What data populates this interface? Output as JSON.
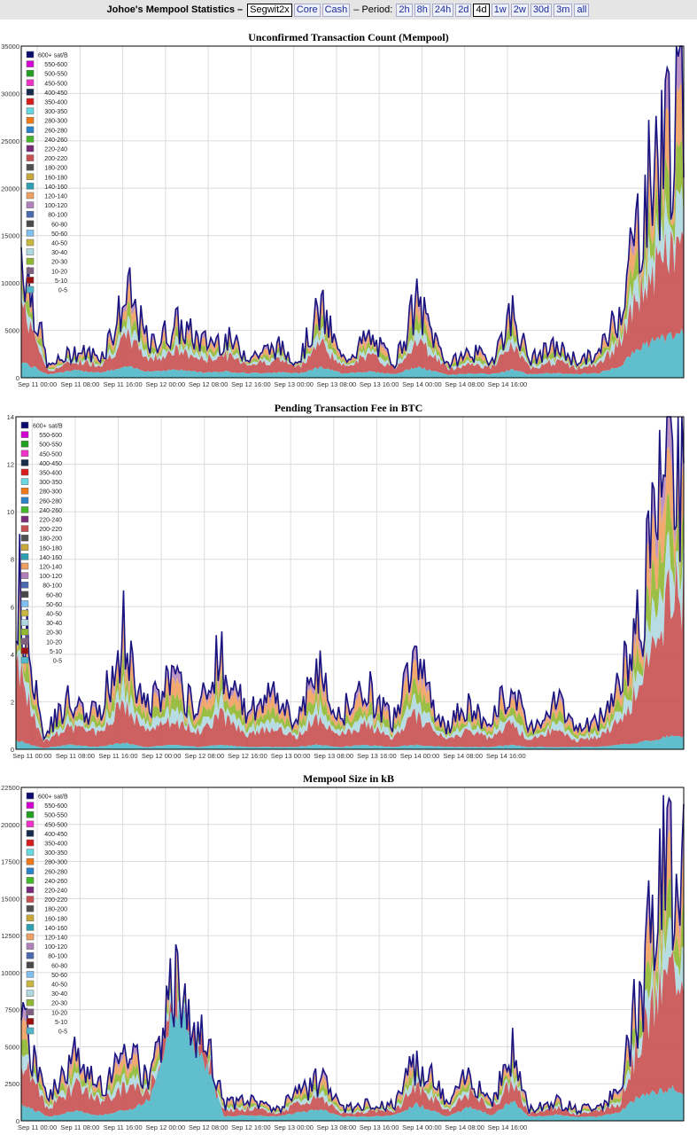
{
  "topbar": {
    "title": "Johoe's Mempool Statistics –",
    "coins": [
      "Segwit2x",
      "Core",
      "Cash"
    ],
    "active_coin": "Segwit2x",
    "period_label": "– Period:",
    "periods": [
      "2h",
      "8h",
      "24h",
      "2d",
      "4d",
      "1w",
      "2w",
      "30d",
      "3m",
      "all"
    ],
    "active_period": "4d"
  },
  "colors": {
    "legend": [
      "#0c0c6e",
      "#d400d4",
      "#22a022",
      "#f030c8",
      "#162c4c",
      "#d81c1c",
      "#66d8e0",
      "#f07818",
      "#2a82c8",
      "#44b828",
      "#7a2a7a",
      "#c85050",
      "#505050",
      "#c8a838",
      "#2aa0b0",
      "#f0a060",
      "#b080b8",
      "#4a6ab0",
      "#4a4a4a",
      "#80c0f0",
      "#c8b840",
      "#b0d8e0",
      "#90b830",
      "#806080",
      "#9a1010",
      "#50b8c8"
    ],
    "line": "#1a1480",
    "grid": "#dcdcdc"
  },
  "legend_labels": [
    "600+ sat/B",
    "550-600",
    "500-550",
    "450-500",
    "400-450",
    "350-400",
    "300-350",
    "280-300",
    "260-280",
    "240-260",
    "220-240",
    "200-220",
    "180-200",
    "160-180",
    "140-160",
    "120-140",
    "100-120",
    "80-100",
    "60-80",
    "50-60",
    "40-50",
    "30-40",
    "20-30",
    "10-20",
    "5-10",
    "0-5"
  ],
  "x_ticks": [
    "Sep 11 00:00",
    "Sep 11 08:00",
    "Sep 11 16:00",
    "Sep 12 00:00",
    "Sep 12 08:00",
    "Sep 12 16:00",
    "Sep 13 00:00",
    "Sep 13 08:00",
    "Sep 13 16:00",
    "Sep 14 00:00",
    "Sep 14 08:00",
    "Sep 14 16:00"
  ],
  "chart_data": [
    {
      "type": "area",
      "title": "Unconfirmed Transaction Count (Mempool)",
      "ylim": [
        0,
        35000
      ],
      "yticks": [
        "0",
        "5000",
        "10000",
        "15000",
        "20000",
        "25000",
        "30000",
        "35000"
      ],
      "x_hours": [
        0,
        5,
        10,
        15,
        20,
        24,
        29,
        34,
        38,
        43,
        48,
        52,
        56,
        60,
        65,
        70,
        74,
        80,
        84,
        88,
        92,
        95,
        100,
        104,
        108,
        112,
        116,
        122
      ],
      "total": [
        15000,
        1200,
        3000,
        2500,
        9500,
        3500,
        6000,
        4000,
        4500,
        2500,
        3500,
        2000,
        8000,
        2000,
        4500,
        1800,
        8500,
        1500,
        3000,
        2000,
        7500,
        2000,
        3500,
        2000,
        2500,
        8000,
        19000,
        30500
      ],
      "lower": [
        8500,
        700,
        1800,
        1500,
        4500,
        2000,
        3000,
        2000,
        2500,
        1500,
        2000,
        1200,
        4000,
        1200,
        2500,
        1000,
        4200,
        900,
        1600,
        1100,
        3500,
        1100,
        1800,
        1100,
        1400,
        3800,
        9500,
        14500
      ],
      "base": [
        1800,
        400,
        800,
        600,
        1200,
        700,
        900,
        600,
        700,
        500,
        600,
        500,
        1200,
        500,
        700,
        400,
        1200,
        300,
        500,
        400,
        900,
        400,
        500,
        400,
        500,
        1300,
        3500,
        4800
      ]
    },
    {
      "type": "area",
      "title": "Pending Transaction Fee in BTC",
      "ylim": [
        0,
        14
      ],
      "yticks": [
        "0",
        "2",
        "4",
        "6",
        "8",
        "10",
        "12",
        "14"
      ],
      "x_hours": [
        0,
        5,
        10,
        15,
        20,
        24,
        29,
        34,
        38,
        43,
        48,
        52,
        56,
        60,
        65,
        70,
        74,
        80,
        84,
        88,
        92,
        95,
        100,
        104,
        108,
        112,
        116,
        122
      ],
      "total": [
        8.2,
        0.6,
        2.2,
        1.5,
        5.3,
        1.8,
        3.0,
        2.0,
        4.3,
        1.5,
        2.5,
        1.2,
        3.5,
        1.5,
        2.8,
        1.2,
        3.8,
        1.0,
        2.0,
        1.2,
        3.0,
        1.0,
        2.2,
        1.0,
        1.2,
        3.0,
        6.0,
        13.8
      ],
      "lower": [
        4.0,
        0.3,
        1.0,
        0.7,
        2.0,
        0.8,
        1.2,
        0.8,
        1.5,
        0.6,
        1.0,
        0.5,
        1.4,
        0.6,
        1.1,
        0.5,
        1.5,
        0.4,
        0.8,
        0.5,
        1.2,
        0.4,
        0.9,
        0.4,
        0.5,
        1.2,
        2.8,
        7.0
      ],
      "base": [
        0.4,
        0.05,
        0.2,
        0.1,
        0.3,
        0.1,
        0.2,
        0.1,
        0.2,
        0.1,
        0.1,
        0.1,
        0.2,
        0.1,
        0.2,
        0.1,
        0.2,
        0.1,
        0.1,
        0.1,
        0.2,
        0.1,
        0.1,
        0.1,
        0.1,
        0.2,
        0.3,
        0.6
      ]
    },
    {
      "type": "area",
      "title": "Mempool Size in kB",
      "ylim": [
        0,
        22500
      ],
      "yticks": [
        "0",
        "2500",
        "5000",
        "7500",
        "10000",
        "12500",
        "15000",
        "17500",
        "20000",
        "22500"
      ],
      "x_hours": [
        0,
        5,
        10,
        15,
        20,
        24,
        29,
        34,
        38,
        43,
        48,
        52,
        56,
        60,
        65,
        70,
        74,
        80,
        84,
        88,
        92,
        95,
        100,
        104,
        108,
        112,
        116,
        122
      ],
      "total": [
        7200,
        1500,
        4500,
        2500,
        5500,
        2500,
        10500,
        6500,
        1200,
        1500,
        800,
        2000,
        3000,
        800,
        1200,
        1200,
        4500,
        1200,
        3500,
        1500,
        5000,
        800,
        1500,
        800,
        1200,
        2000,
        10000,
        20300
      ],
      "lower": [
        4500,
        800,
        2500,
        1400,
        2500,
        2000,
        9500,
        5500,
        700,
        900,
        500,
        1200,
        1800,
        500,
        700,
        700,
        2500,
        700,
        2000,
        900,
        2800,
        500,
        900,
        500,
        700,
        1200,
        6000,
        11000
      ],
      "base": [
        1200,
        300,
        700,
        400,
        800,
        1500,
        8500,
        4500,
        300,
        400,
        300,
        600,
        800,
        300,
        300,
        400,
        1200,
        300,
        1000,
        400,
        1400,
        300,
        400,
        300,
        300,
        600,
        1800,
        2200
      ]
    }
  ]
}
